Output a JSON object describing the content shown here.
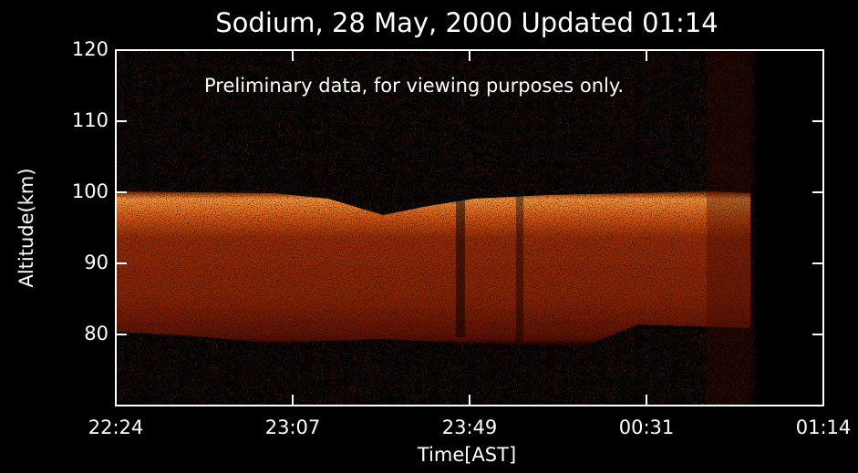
{
  "chart_data": {
    "type": "heatmap",
    "title": "Sodium, 28 May, 2000 Updated 01:14",
    "annotation": "Preliminary data, for viewing purposes only.",
    "y_label": "Altitude(km)",
    "x_label": "Time[AST]",
    "xticks": [
      "22:24",
      "23:07",
      "23:49",
      "00:31",
      "01:14"
    ],
    "ylim": [
      70,
      120
    ],
    "yticks": [
      80,
      90,
      100,
      110,
      120
    ]
  }
}
